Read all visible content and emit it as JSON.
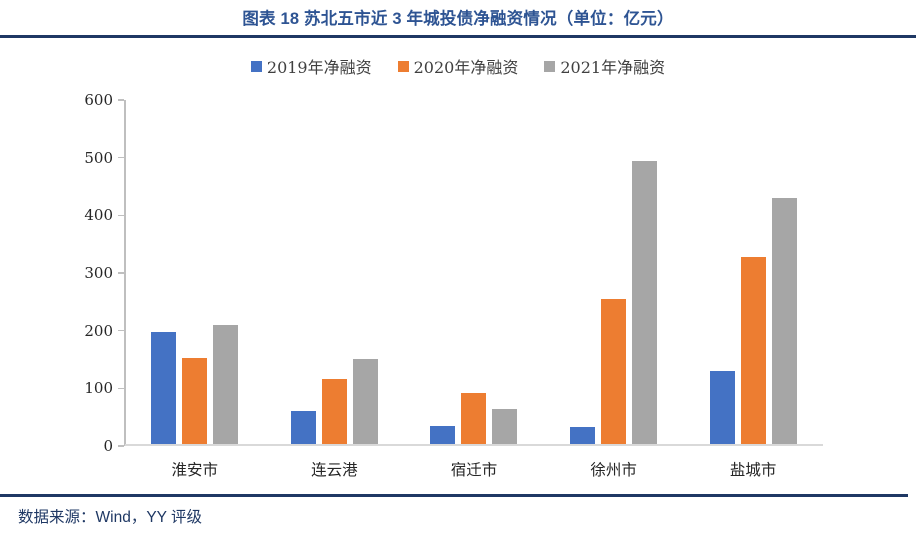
{
  "header": {
    "title": "图表 18 苏北五市近 3 年城投债净融资情况（单位：亿元）"
  },
  "footer": {
    "source": "数据来源：Wind，YY 评级"
  },
  "colors": {
    "title_blue": "#2e5493",
    "rule_navy": "#1f3864",
    "source_navy": "#1f3864",
    "axis_line": "#bfbfbf",
    "xaxis_line": "#d9d9d9",
    "axis_text": "#262626",
    "legend_text": "#404040"
  },
  "chart_data": {
    "type": "bar",
    "title": "图表 18 苏北五市近 3 年城投债净融资情况（单位：亿元）",
    "xlabel": "",
    "ylabel": "",
    "categories": [
      "淮安市",
      "连云港",
      "宿迁市",
      "徐州市",
      "盐城市"
    ],
    "series": [
      {
        "name": "2019年净融资",
        "color": "#4472c4",
        "values": [
          194,
          58,
          32,
          30,
          126
        ]
      },
      {
        "name": "2020年净融资",
        "color": "#ed7d31",
        "values": [
          149,
          112,
          88,
          252,
          324
        ]
      },
      {
        "name": "2021年净融资",
        "color": "#a6a6a6",
        "values": [
          207,
          148,
          61,
          491,
          427
        ]
      }
    ],
    "ylim": [
      0,
      600
    ],
    "yticks": [
      0,
      100,
      200,
      300,
      400,
      500,
      600
    ],
    "grid": false,
    "legend_position": "top"
  }
}
